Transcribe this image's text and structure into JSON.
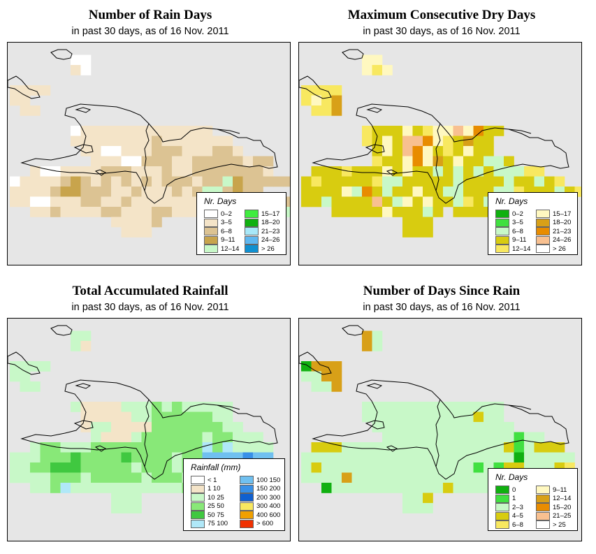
{
  "panels": [
    {
      "id": "rain-days",
      "title": "Number of Rain Days",
      "subtitle": "in past 30 days, as of  16 Nov. 2011",
      "legend": {
        "title": "Nr. Days",
        "items": [
          {
            "label": "0–2",
            "color": "#ffffff"
          },
          {
            "label": "3–5",
            "color": "#f4e4c8"
          },
          {
            "label": "6–8",
            "color": "#dcc393"
          },
          {
            "label": "9–11",
            "color": "#c8a44c"
          },
          {
            "label": "12–14",
            "color": "#c8f8c8"
          },
          {
            "label": "15–17",
            "color": "#40ec40"
          },
          {
            "label": "18–20",
            "color": "#10b010"
          },
          {
            "label": "21–23",
            "color": "#a8e8f8"
          },
          {
            "label": "24–26",
            "color": "#60b8f0"
          },
          {
            "label": "> 26",
            "color": "#1090d0"
          }
        ]
      }
    },
    {
      "id": "dry-days",
      "title": "Maximum Consecutive Dry Days",
      "subtitle": "in past 30 days, as of  16 Nov. 2011",
      "legend": {
        "title": "Nr. Days",
        "items": [
          {
            "label": "0–2",
            "color": "#10b010"
          },
          {
            "label": "3–5",
            "color": "#40e040"
          },
          {
            "label": "6–8",
            "color": "#c8f8c8"
          },
          {
            "label": "9–11",
            "color": "#d8cc10"
          },
          {
            "label": "12–14",
            "color": "#f8e860"
          },
          {
            "label": "15–17",
            "color": "#fff8c0"
          },
          {
            "label": "18–20",
            "color": "#d8a018"
          },
          {
            "label": "21–23",
            "color": "#e88c00"
          },
          {
            "label": "24–26",
            "color": "#f8c090"
          },
          {
            "label": "> 26",
            "color": "#ffffff"
          }
        ]
      }
    },
    {
      "id": "total-rainfall",
      "title": "Total Accumulated Rainfall",
      "subtitle": "in past 30 days, as of  16 Nov. 2011",
      "legend": {
        "title": "Rainfall (mm)",
        "items": [
          {
            "label": "< 1",
            "color": "#ffffff"
          },
          {
            "label": "1   10",
            "color": "#f4e4c8"
          },
          {
            "label": "10   25",
            "color": "#c8f8c8"
          },
          {
            "label": "25   50",
            "color": "#88e878"
          },
          {
            "label": "50   75",
            "color": "#40c840"
          },
          {
            "label": "75   100",
            "color": "#b0e8f8"
          },
          {
            "label": "100   150",
            "color": "#70c0f0"
          },
          {
            "label": "150   200",
            "color": "#3890e8"
          },
          {
            "label": "200   300",
            "color": "#1060d0"
          },
          {
            "label": "300   400",
            "color": "#f8e860"
          },
          {
            "label": "400   600",
            "color": "#f0a000"
          },
          {
            "label": "> 600",
            "color": "#f03000"
          }
        ]
      }
    },
    {
      "id": "days-since-rain",
      "title": "Number of Days Since Rain",
      "subtitle": "in past 30 days, as of  16 Nov. 2011",
      "legend": {
        "title": "Nr. Days",
        "items": [
          {
            "label": "0",
            "color": "#10b010"
          },
          {
            "label": "1",
            "color": "#40e040"
          },
          {
            "label": "2–3",
            "color": "#c8f8c8"
          },
          {
            "label": "4–5",
            "color": "#d8cc10"
          },
          {
            "label": "6–8",
            "color": "#f8e860"
          },
          {
            "label": "9–11",
            "color": "#fff8c0"
          },
          {
            "label": "12–14",
            "color": "#d8a018"
          },
          {
            "label": "15–20",
            "color": "#e88c00"
          },
          {
            "label": "21–25",
            "color": "#f8c090"
          },
          {
            "label": "> 25",
            "color": "#ffffff"
          }
        ]
      }
    }
  ],
  "grids": {
    "rain-days": [
      "..........................",
      "......aa..................",
      "......ba..................",
      "..................................",
      "bbbb......................",
      "bb..........................",
      ".bb.......................",
      "...........................",
      "......abbbbbbbbbbbbb.......",
      "......bbbbbbbbcbbbbbbb.....",
      ".......bbaabbbcccbbbccb....",
      "........bbbaacccbbcccccbcc..",
      "..baabbbbcccbbbcbbcccccccb..",
      "abbbbcdcbcbcbcbcccbccedccccc",
      "bbbbcddcccbbcbbbcbceecdcc...",
      "bbaabbbccbbcbbbbbbbccdeeeeccc",
      "..bbcbbbbccbbbccbbbbbb....ee",
      "..........bbbbc..............",
      "...........bbb...............",
      "...........................",
      "..........................."
    ],
    "dry-days": [
      "..........................",
      "......ff..................",
      "......fef.................",
      "..........................",
      "eeee......................",
      "efeg......................",
      ".eeg......................",
      "..........................",
      "......edddfdeffifhdd.......",
      "......edfdiihfedgdd.....",
      ".......dfdihfdedfdd....",
      ".......eddfhfgdfddccd.....",
      ".dddedddfdfddcdcdcdcccee..",
      "dedddddeccdddddcddddcddcde",
      "ddddfchdcddfddccdddccedddcde",
      "ddcddddidcfdfddcedcddcddde..",
      "...dddddfdddcd.ddddd.....d.",
      "..........ddd..............",
      "..........ddd..............",
      "..........................",
      ".........................."
    ],
    "total-rainfall": [
      "..........................",
      "......cc..................",
      "......cb..................",
      "..........................",
      "cccc......................",
      "cc.......................",
      ".cc......................",
      "..........................",
      "......cbbbbcccdcdccccc.....",
      ".......bbbbbccddddddcc.....",
      ".......bccbbbbdddddddcc....",
      "........cbbbcddddddcddccc..",
      "..cddcccdddddddddddfdfcccc..",
      "cccdddeddddeddddcddgggghgg..",
      "ccddeeedddddcdddcdddggghhgg",
      "ccccdddcdddddcdddcddgghhhgf",
      "..ccdfcccccccccccd...c...gg.",
      "..........ccc...............",
      "..........ccc...............",
      "..........................",
      ".........................."
    ],
    "days-since-rain": [
      "..........................",
      "......gc..................",
      "......gc..................",
      "..........................",
      "aggg......................",
      "ccgg......................",
      ".ccg......................",
      "..........................",
      "......cccccccccccccc.......",
      "......cccccccccccdcc.......",
      ".......cccccccccccccc......",
      "........cccccccccccccbcc...",
      ".dddccccccccccccccccdbcddd..",
      "cccccccccccccccccccccaccccc.",
      "cdcccccccccccccccbcbddcccde",
      "ccccgcccccccccccccccccccdee",
      "..acccccccccccdcccccc....aa.",
      "..........ccd..............",
      "..........ccc..............",
      "..........................",
      ".........................."
    ]
  },
  "chart_data": {
    "type": "heatmap"
  }
}
